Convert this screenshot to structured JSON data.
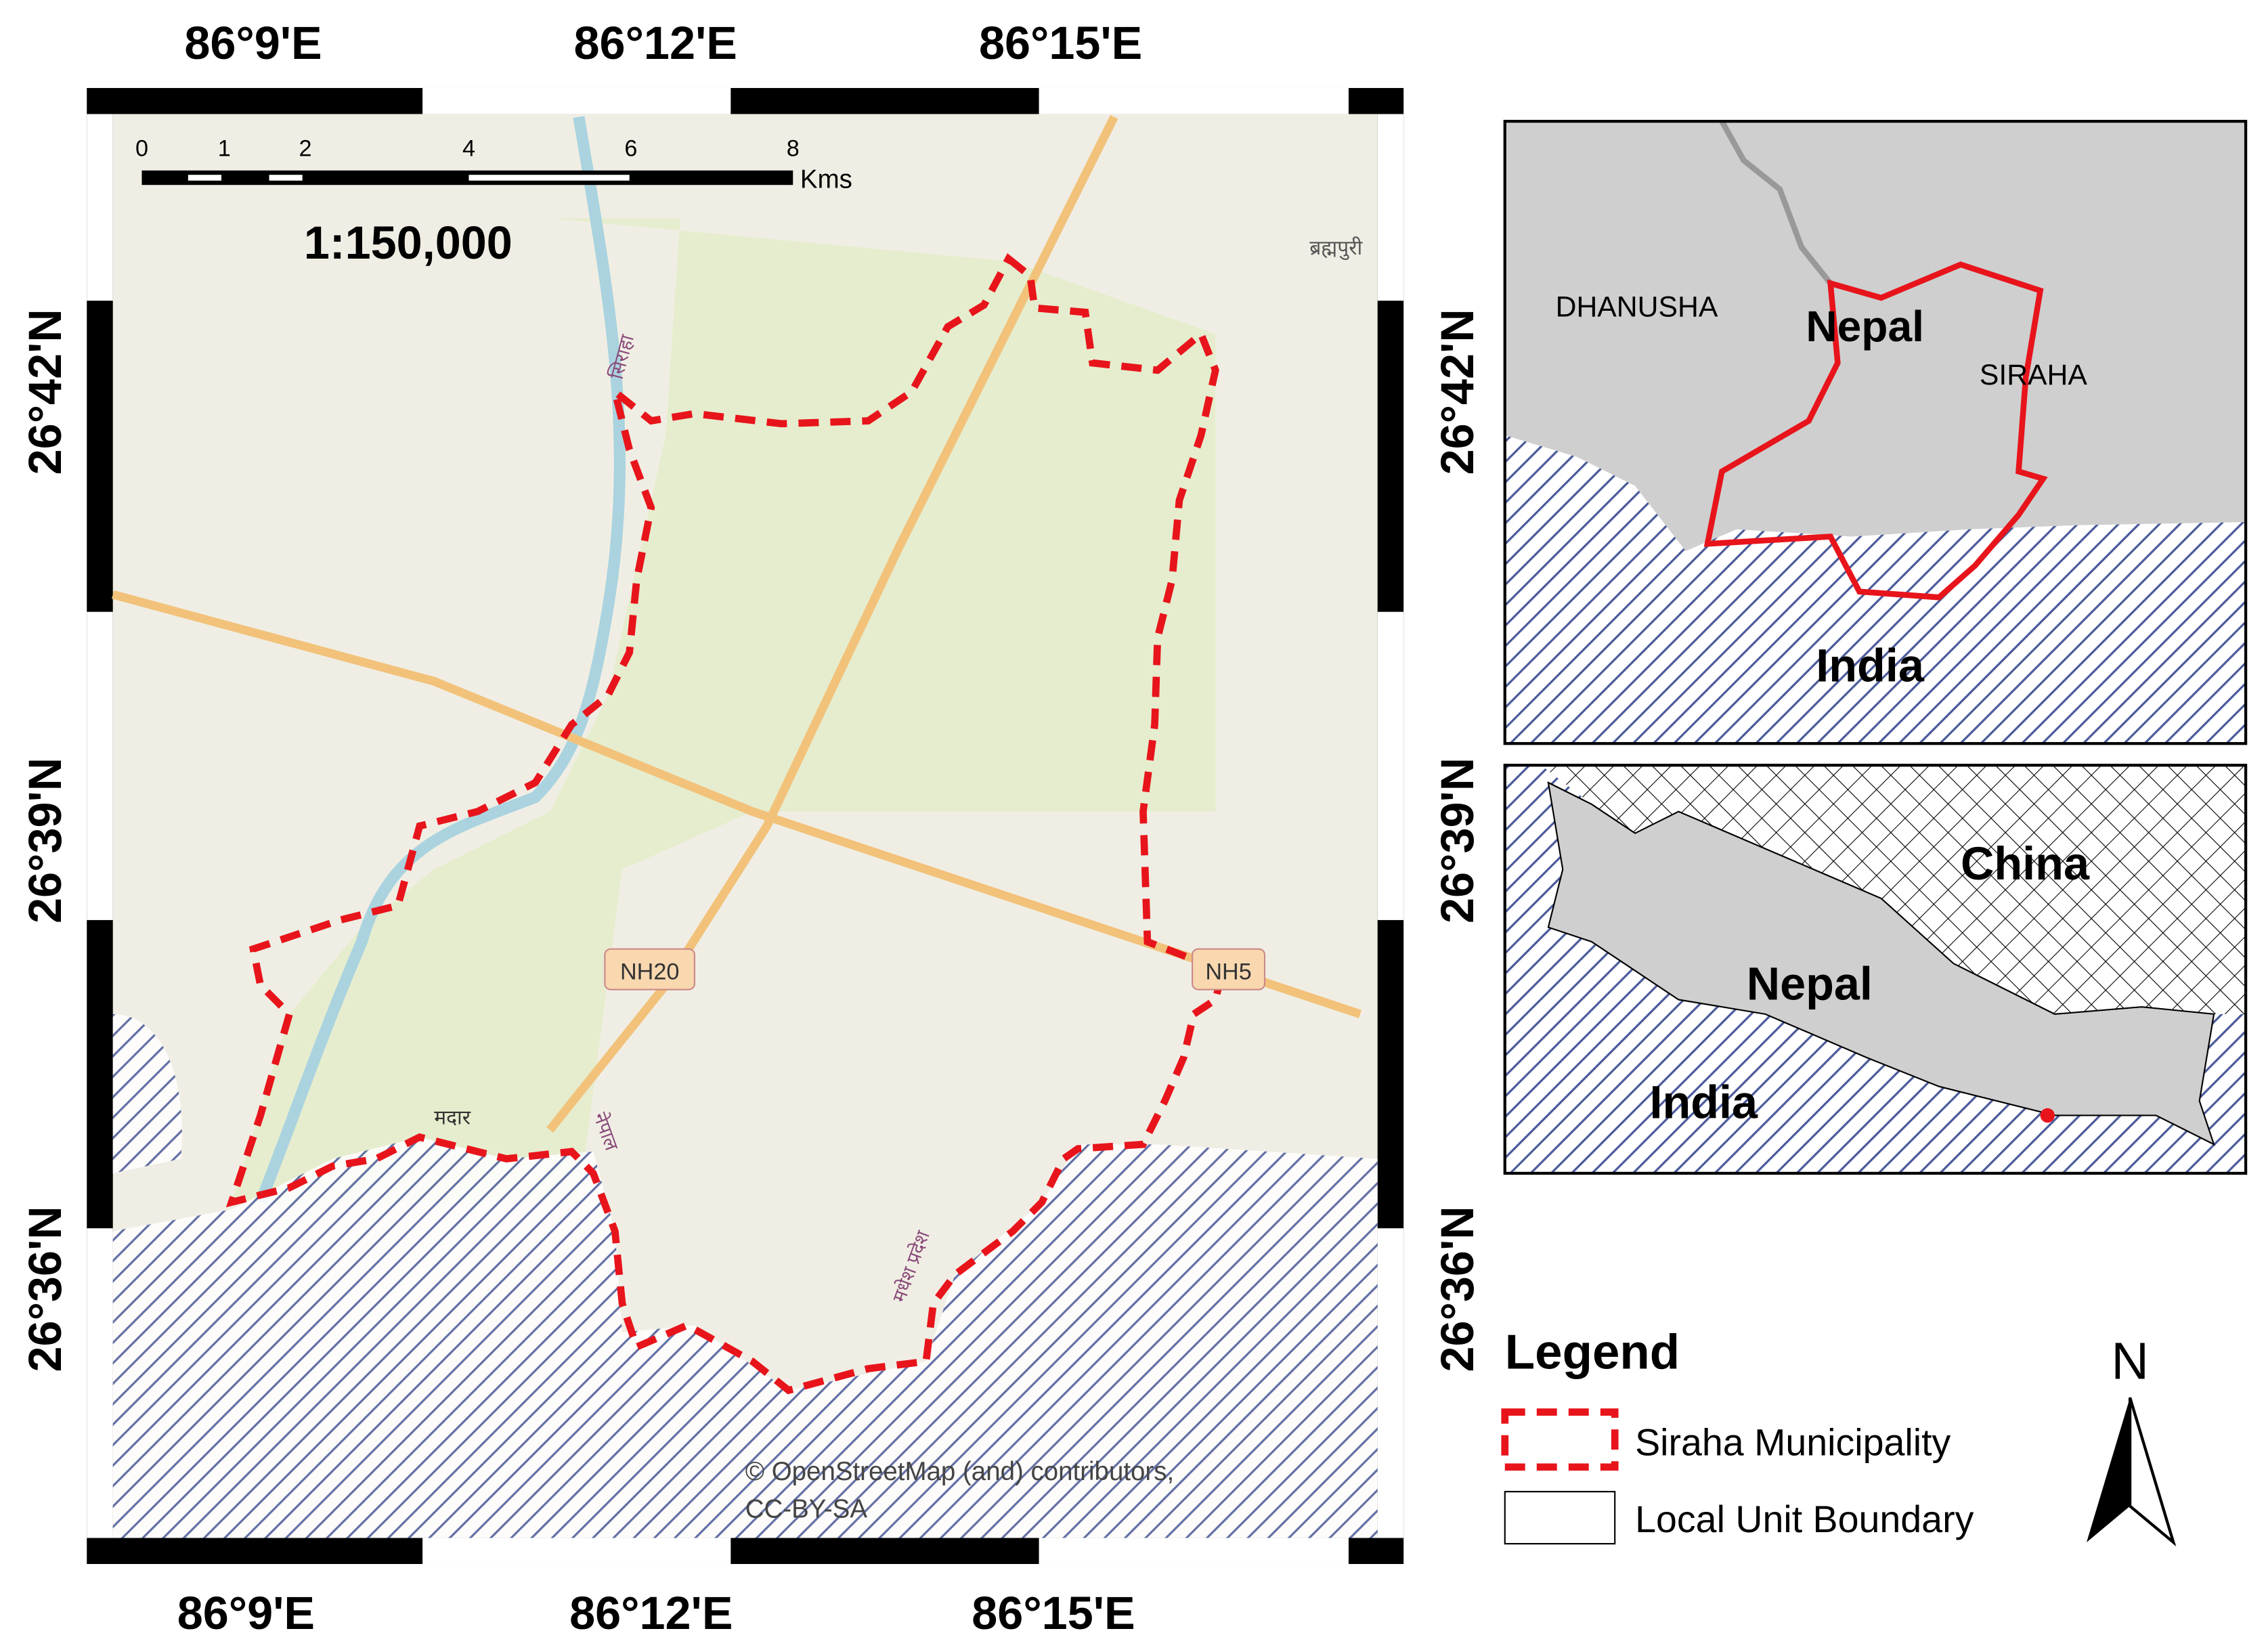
{
  "map_frame": {
    "top_labels": [
      "86°9'E",
      "86°12'E",
      "86°15'E"
    ],
    "bottom_labels": [
      "86°9'E",
      "86°12'E",
      "86°15'E"
    ],
    "left_labels": [
      "26°42'N",
      "26°39'N",
      "26°36'N"
    ],
    "right_labels": [
      "26°42'N",
      "26°39'N",
      "26°36'N"
    ]
  },
  "scale_bar": {
    "ticks": [
      "0",
      "1",
      "2",
      "4",
      "6",
      "8"
    ],
    "unit": "Kms",
    "ratio": "1:150,000"
  },
  "map_labels": [
    "ब्रह्मपुरी",
    "सिराहा",
    "NH20",
    "NH5",
    "मदार",
    "नेपाल",
    "मधेश प्रदेश"
  ],
  "attribution": [
    "© OpenStreetMap (and) contributors,",
    "CC-BY-SA"
  ],
  "inset_district": {
    "labels": [
      "DHANUSHA",
      "Nepal",
      "SIRAHA",
      "India"
    ]
  },
  "inset_country": {
    "labels": [
      "China",
      "Nepal",
      "India"
    ]
  },
  "legend": {
    "title": "Legend",
    "items": [
      "Siraha Municipality",
      "Local Unit Boundary"
    ]
  },
  "north_arrow": "N"
}
